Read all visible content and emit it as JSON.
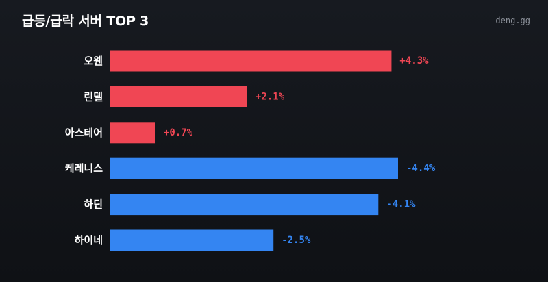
{
  "header": {
    "title": "급등/급락 서버 TOP 3",
    "brand": "deng.gg"
  },
  "colors": {
    "positive": "#f04654",
    "negative": "#3485f2",
    "background": "#14171c"
  },
  "chart_data": {
    "type": "bar",
    "orientation": "horizontal",
    "title": "급등/급락 서버 TOP 3",
    "xlabel": "",
    "ylabel": "",
    "grid": false,
    "legend": "none",
    "unit": "%",
    "categories": [
      "오웬",
      "린델",
      "아스테어",
      "케레니스",
      "하딘",
      "하이네"
    ],
    "values": [
      4.3,
      2.1,
      0.7,
      -4.4,
      -4.1,
      -2.5
    ],
    "value_labels": [
      "+4.3%",
      "+2.1%",
      "+0.7%",
      "-4.4%",
      "-4.1%",
      "-2.5%"
    ]
  }
}
